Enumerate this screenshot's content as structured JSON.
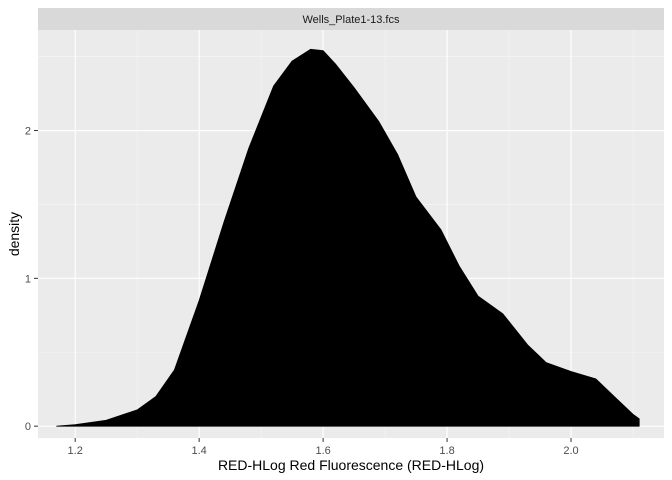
{
  "chart_data": {
    "type": "area",
    "facet_label": "Wells_Plate1-13.fcs",
    "xlabel": "RED-HLog Red Fluorescence (RED-HLog)",
    "ylabel": "density",
    "xlim": [
      1.14,
      2.15
    ],
    "ylim": [
      -0.08,
      2.68
    ],
    "x_ticks": [
      1.2,
      1.4,
      1.6,
      1.8,
      2.0
    ],
    "x_tick_labels": [
      "1.2",
      "1.4",
      "1.6",
      "1.8",
      "2.0"
    ],
    "y_ticks": [
      0,
      1,
      2
    ],
    "y_tick_labels": [
      "0",
      "1",
      "2"
    ],
    "grid": true,
    "series": [
      {
        "fill_color": "#000000",
        "points": [
          {
            "x": 1.17,
            "y": 0.0
          },
          {
            "x": 1.2,
            "y": 0.01
          },
          {
            "x": 1.25,
            "y": 0.04
          },
          {
            "x": 1.3,
            "y": 0.11
          },
          {
            "x": 1.33,
            "y": 0.2
          },
          {
            "x": 1.36,
            "y": 0.38
          },
          {
            "x": 1.4,
            "y": 0.85
          },
          {
            "x": 1.44,
            "y": 1.38
          },
          {
            "x": 1.48,
            "y": 1.88
          },
          {
            "x": 1.52,
            "y": 2.3
          },
          {
            "x": 1.55,
            "y": 2.47
          },
          {
            "x": 1.58,
            "y": 2.55
          },
          {
            "x": 1.6,
            "y": 2.54
          },
          {
            "x": 1.62,
            "y": 2.45
          },
          {
            "x": 1.65,
            "y": 2.29
          },
          {
            "x": 1.69,
            "y": 2.06
          },
          {
            "x": 1.72,
            "y": 1.84
          },
          {
            "x": 1.75,
            "y": 1.55
          },
          {
            "x": 1.79,
            "y": 1.33
          },
          {
            "x": 1.82,
            "y": 1.08
          },
          {
            "x": 1.85,
            "y": 0.88
          },
          {
            "x": 1.89,
            "y": 0.76
          },
          {
            "x": 1.93,
            "y": 0.55
          },
          {
            "x": 1.96,
            "y": 0.43
          },
          {
            "x": 2.0,
            "y": 0.37
          },
          {
            "x": 2.04,
            "y": 0.32
          },
          {
            "x": 2.07,
            "y": 0.2
          },
          {
            "x": 2.1,
            "y": 0.08
          },
          {
            "x": 2.11,
            "y": 0.05
          }
        ]
      }
    ]
  }
}
